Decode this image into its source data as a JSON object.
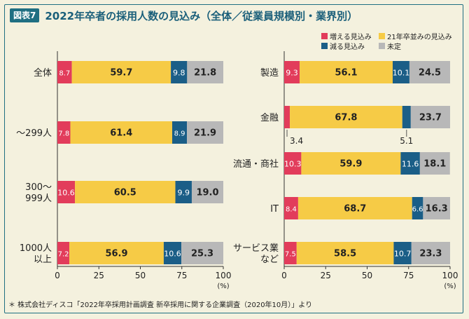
{
  "header": {
    "badge": "図表7",
    "title": "2022年卒者の採用人数の見込み（全体／従業員規模別・業界別）"
  },
  "legend": [
    {
      "label": "増える見込み",
      "color": "#e23c5b"
    },
    {
      "label": "21年卒並みの見込み",
      "color": "#f6cb46"
    },
    {
      "label": "減る見込み",
      "color": "#1b5e87"
    },
    {
      "label": "未定",
      "color": "#b8b8b8"
    }
  ],
  "footnote": "＊ 株式会社ディスコ「2022年卒採用計画調査 新卒採用に関する企業調査（2020年10月）」より",
  "chart_data": [
    {
      "type": "bar",
      "orientation": "horizontal",
      "stacked": true,
      "categories": [
        "全体",
        "～299人",
        "300～\n999人",
        "1000人\n以上"
      ],
      "series": [
        {
          "name": "増える見込み",
          "values": [
            8.7,
            7.8,
            10.6,
            7.2
          ]
        },
        {
          "name": "21年卒並みの見込み",
          "values": [
            59.7,
            61.4,
            60.5,
            56.9
          ]
        },
        {
          "name": "減る見込み",
          "values": [
            9.8,
            8.9,
            9.9,
            10.6
          ]
        },
        {
          "name": "未定",
          "values": [
            21.8,
            21.9,
            19.0,
            25.3
          ]
        }
      ],
      "xlim": [
        0,
        100
      ],
      "xticks": [
        "0",
        "25",
        "50",
        "75",
        "100"
      ],
      "xunit": "(%)"
    },
    {
      "type": "bar",
      "orientation": "horizontal",
      "stacked": true,
      "categories": [
        "製造",
        "金融",
        "流通・商社",
        "IT",
        "サービス業\nなど"
      ],
      "series": [
        {
          "name": "増える見込み",
          "values": [
            9.3,
            3.4,
            10.3,
            8.4,
            7.5
          ]
        },
        {
          "name": "21年卒並みの見込み",
          "values": [
            56.1,
            67.8,
            59.9,
            68.7,
            58.5
          ]
        },
        {
          "name": "減る見込み",
          "values": [
            10.1,
            5.1,
            11.6,
            6.6,
            10.7
          ]
        },
        {
          "name": "未定",
          "values": [
            24.5,
            23.7,
            18.1,
            16.3,
            23.3
          ]
        }
      ],
      "xlim": [
        0,
        100
      ],
      "xticks": [
        "0",
        "25",
        "50",
        "75",
        "100"
      ],
      "xunit": "(%)"
    }
  ]
}
